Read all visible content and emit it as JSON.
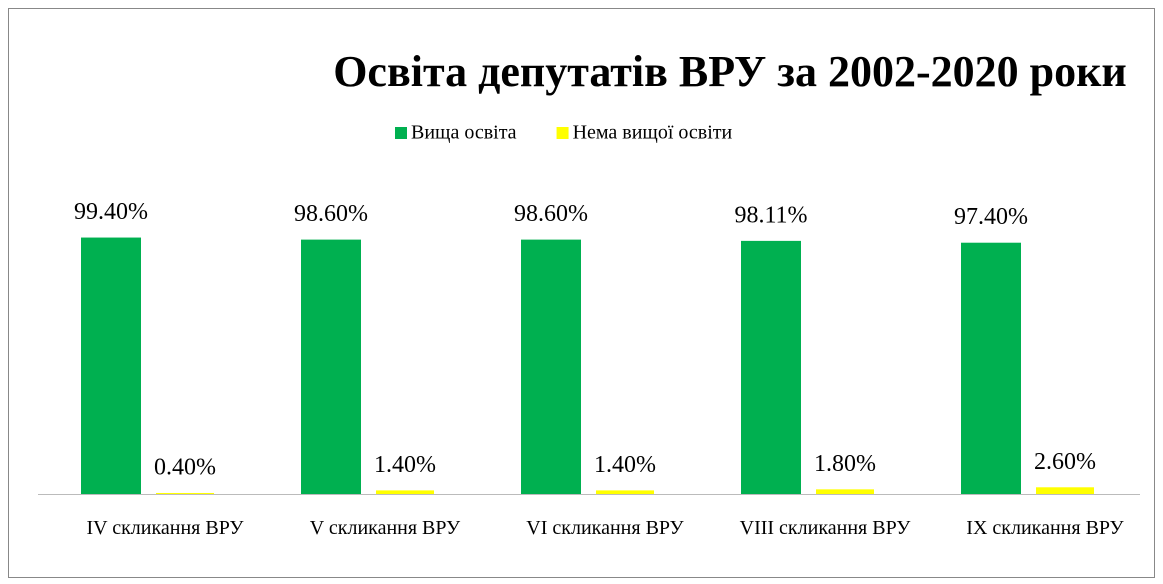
{
  "chart_data": {
    "type": "bar",
    "title": "Освіта депутатів ВРУ за 2002-2020 роки",
    "categories": [
      "IV скликання ВРУ",
      "V скликання ВРУ",
      "VI скликання ВРУ",
      "VIII скликання ВРУ",
      "IX скликання ВРУ"
    ],
    "series": [
      {
        "name": "Вища освіта",
        "color": "#00b050",
        "values": [
          99.4,
          98.6,
          98.6,
          98.11,
          97.4
        ],
        "value_labels": [
          "99.40%",
          "98.60%",
          "98.60%",
          "98.11%",
          "97.40%"
        ]
      },
      {
        "name": "Нема вищої освіти",
        "color": "#ffff00",
        "values": [
          0.4,
          1.4,
          1.4,
          1.8,
          2.6
        ],
        "value_labels": [
          "0.40%",
          "1.40%",
          "1.40%",
          "1.80%",
          "2.60%"
        ]
      }
    ],
    "ylim": [
      0,
      100
    ],
    "legend": "top"
  }
}
